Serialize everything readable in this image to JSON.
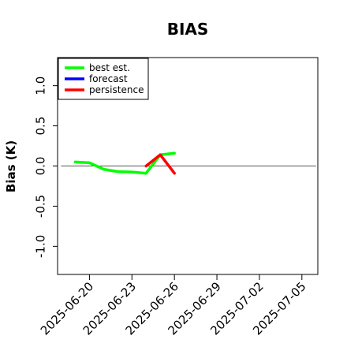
{
  "chart_data": {
    "type": "line",
    "title": "BIAS",
    "xlabel": "",
    "ylabel": "Bias (K)",
    "ylim": [
      -1.35,
      1.35
    ],
    "yticks": [
      -1.0,
      -0.5,
      0.0,
      0.5,
      1.0
    ],
    "ytick_labels": [
      "-1.0",
      "-0.5",
      "0.0",
      "0.5",
      "1.0"
    ],
    "xlim": [
      "2025-06-17T18:00",
      "2025-07-06T03:00"
    ],
    "xticks": [
      "2025-06-20",
      "2025-06-23",
      "2025-06-26",
      "2025-06-29",
      "2025-07-02",
      "2025-07-05"
    ],
    "xtick_labels": [
      "2025-06-20",
      "2025-06-23",
      "2025-06-26",
      "2025-06-29",
      "2025-07-02",
      "2025-07-05"
    ],
    "highlighted_xtick": "2025-06-26",
    "highlight_color": "#228b22",
    "reference_line": {
      "y": 0.0,
      "from": "2025-06-18",
      "to": "2025-07-06",
      "color": "#555555"
    },
    "legend": {
      "placement": "top-left",
      "entries": [
        "best est.",
        "forecast",
        "persistence"
      ]
    },
    "series": [
      {
        "name": "best est.",
        "color": "#00ff00",
        "x": [
          "2025-06-19",
          "2025-06-20",
          "2025-06-21",
          "2025-06-22",
          "2025-06-23",
          "2025-06-24",
          "2025-06-25",
          "2025-06-26"
        ],
        "y": [
          0.05,
          0.04,
          -0.04,
          -0.07,
          -0.075,
          -0.09,
          0.14,
          0.16
        ]
      },
      {
        "name": "forecast",
        "color": "#0000ff",
        "x": [],
        "y": []
      },
      {
        "name": "persistence",
        "color": "#ff0000",
        "x": [
          "2025-06-24",
          "2025-06-25",
          "2025-06-26"
        ],
        "y": [
          0.0,
          0.14,
          -0.09
        ]
      }
    ]
  }
}
